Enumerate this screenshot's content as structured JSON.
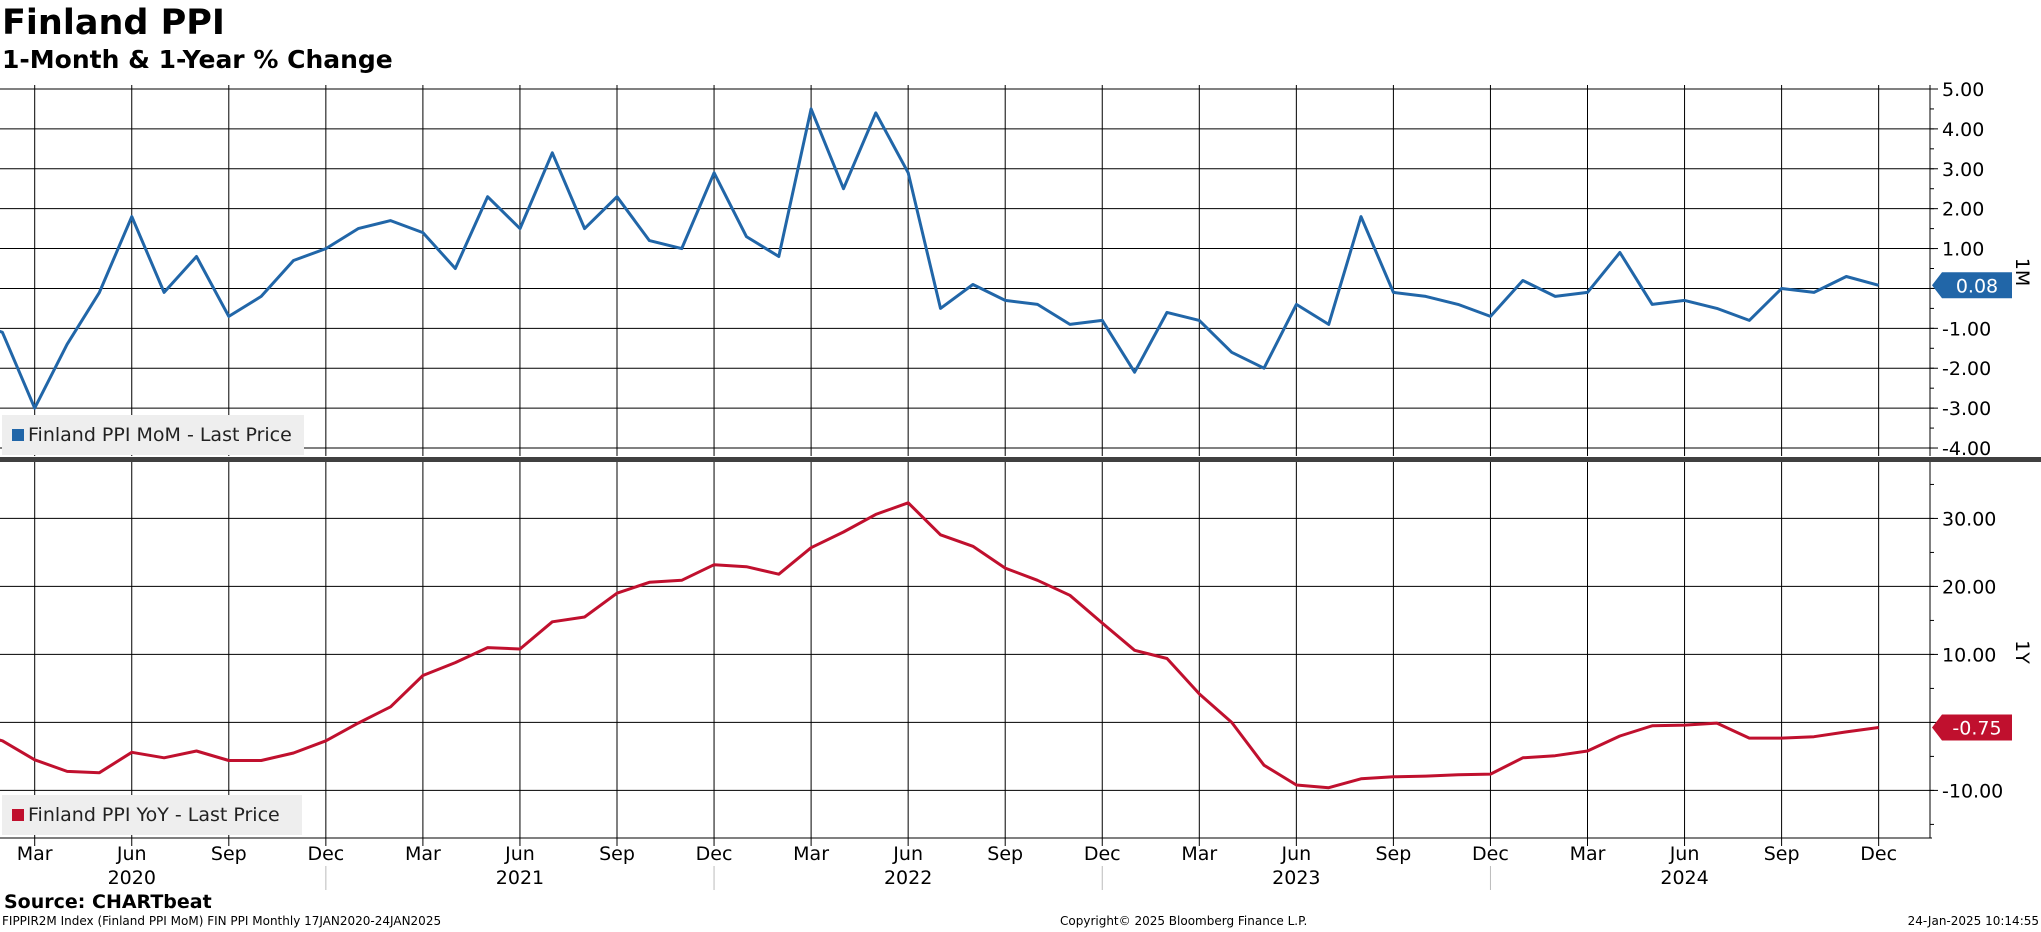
{
  "title": "Finland PPI",
  "subtitle": "1-Month & 1-Year % Change",
  "source": "Source: CHARTbeat",
  "footer": {
    "left": "FIPPIR2M Index (Finland PPI MoM) FIN PPI  Monthly 17JAN2020-24JAN2025",
    "center": "Copyright© 2025 Bloomberg Finance L.P.",
    "right": "24-Jan-2025 10:14:55"
  },
  "x_axis": {
    "month_labels": [
      "Mar",
      "Jun",
      "Sep",
      "Dec",
      "Mar",
      "Jun",
      "Sep",
      "Dec",
      "Mar",
      "Jun",
      "Sep",
      "Dec",
      "Mar",
      "Jun",
      "Sep",
      "Dec",
      "Mar",
      "Jun",
      "Sep",
      "Dec"
    ],
    "year_labels": [
      "2020",
      "2021",
      "2022",
      "2023",
      "2024"
    ]
  },
  "colors": {
    "mom": "#2166a8",
    "yoy": "#c0102e",
    "grid": "#000000",
    "separator": "#404040"
  },
  "chart_data": [
    {
      "type": "line",
      "panel_label": "1M",
      "legend": "Finland PPI MoM - Last Price",
      "last_value_label": "0.08",
      "ylim": [
        -4.2,
        5.1
      ],
      "yticks": [
        5,
        4,
        3,
        2,
        1,
        0,
        -1,
        -2,
        -3,
        -4
      ],
      "ytick_labels": [
        "5.00",
        "4.00",
        "3.00",
        "2.00",
        "1.00",
        "",
        "-1.00",
        "-2.00",
        "-3.00",
        "-4.00"
      ],
      "x": [
        "2020-01",
        "2020-02",
        "2020-03",
        "2020-04",
        "2020-05",
        "2020-06",
        "2020-07",
        "2020-08",
        "2020-09",
        "2020-10",
        "2020-11",
        "2020-12",
        "2021-01",
        "2021-02",
        "2021-03",
        "2021-04",
        "2021-05",
        "2021-06",
        "2021-07",
        "2021-08",
        "2021-09",
        "2021-10",
        "2021-11",
        "2021-12",
        "2022-01",
        "2022-02",
        "2022-03",
        "2022-04",
        "2022-05",
        "2022-06",
        "2022-07",
        "2022-08",
        "2022-09",
        "2022-10",
        "2022-11",
        "2022-12",
        "2023-01",
        "2023-02",
        "2023-03",
        "2023-04",
        "2023-05",
        "2023-06",
        "2023-07",
        "2023-08",
        "2023-09",
        "2023-10",
        "2023-11",
        "2023-12",
        "2024-01",
        "2024-02",
        "2024-03",
        "2024-04",
        "2024-05",
        "2024-06",
        "2024-07",
        "2024-08",
        "2024-09",
        "2024-10",
        "2024-11",
        "2024-12"
      ],
      "series": [
        {
          "values": [
            -0.8,
            -1.1,
            -3.0,
            -1.4,
            -0.1,
            1.8,
            -0.1,
            0.8,
            -0.7,
            -0.2,
            0.7,
            1.0,
            1.5,
            1.7,
            1.4,
            0.5,
            2.3,
            1.5,
            3.4,
            1.5,
            2.3,
            1.2,
            1.0,
            2.9,
            1.3,
            0.8,
            4.5,
            2.5,
            4.4,
            2.9,
            -0.5,
            0.1,
            -0.3,
            -0.4,
            -0.9,
            -0.8,
            -2.1,
            -0.6,
            -0.8,
            -1.6,
            -2.0,
            -0.4,
            -0.9,
            1.8,
            -0.1,
            -0.2,
            -0.4,
            -0.7,
            0.2,
            -0.2,
            -0.1,
            0.9,
            -0.4,
            -0.3,
            -0.5,
            -0.8,
            0.0,
            -0.1,
            0.3,
            0.08
          ]
        }
      ]
    },
    {
      "type": "line",
      "panel_label": "1Y",
      "legend": "Finland PPI YoY - Last Price",
      "last_value_label": "-0.75",
      "ylim": [
        -17.0,
        38.3
      ],
      "yticks": [
        30,
        20,
        10,
        0,
        -10
      ],
      "ytick_labels": [
        "30.00",
        "20.00",
        "10.00",
        "",
        "-10.00"
      ],
      "x": [
        "2020-01",
        "2020-02",
        "2020-03",
        "2020-04",
        "2020-05",
        "2020-06",
        "2020-07",
        "2020-08",
        "2020-09",
        "2020-10",
        "2020-11",
        "2020-12",
        "2021-01",
        "2021-02",
        "2021-03",
        "2021-04",
        "2021-05",
        "2021-06",
        "2021-07",
        "2021-08",
        "2021-09",
        "2021-10",
        "2021-11",
        "2021-12",
        "2022-01",
        "2022-02",
        "2022-03",
        "2022-04",
        "2022-05",
        "2022-06",
        "2022-07",
        "2022-08",
        "2022-09",
        "2022-10",
        "2022-11",
        "2022-12",
        "2023-01",
        "2023-02",
        "2023-03",
        "2023-04",
        "2023-05",
        "2023-06",
        "2023-07",
        "2023-08",
        "2023-09",
        "2023-10",
        "2023-11",
        "2023-12",
        "2024-01",
        "2024-02",
        "2024-03",
        "2024-04",
        "2024-05",
        "2024-06",
        "2024-07",
        "2024-08",
        "2024-09",
        "2024-10",
        "2024-11",
        "2024-12"
      ],
      "series": [
        {
          "values": [
            -1.5,
            -2.7,
            -5.5,
            -7.2,
            -7.4,
            -4.4,
            -5.2,
            -4.2,
            -5.6,
            -5.6,
            -4.5,
            -2.7,
            -0.1,
            2.3,
            6.9,
            8.8,
            11.0,
            10.8,
            14.8,
            15.5,
            19.0,
            20.6,
            20.9,
            23.2,
            22.9,
            21.8,
            25.7,
            28.0,
            30.6,
            32.3,
            27.6,
            25.9,
            22.7,
            20.9,
            18.7,
            14.6,
            10.6,
            9.4,
            4.2,
            0.0,
            -6.3,
            -9.2,
            -9.6,
            -8.3,
            -8.0,
            -7.9,
            -7.7,
            -7.6,
            -5.2,
            -4.9,
            -4.2,
            -2.0,
            -0.5,
            -0.4,
            -0.1,
            -2.3,
            -2.3,
            -2.1,
            -1.4,
            -0.75
          ]
        }
      ]
    }
  ]
}
